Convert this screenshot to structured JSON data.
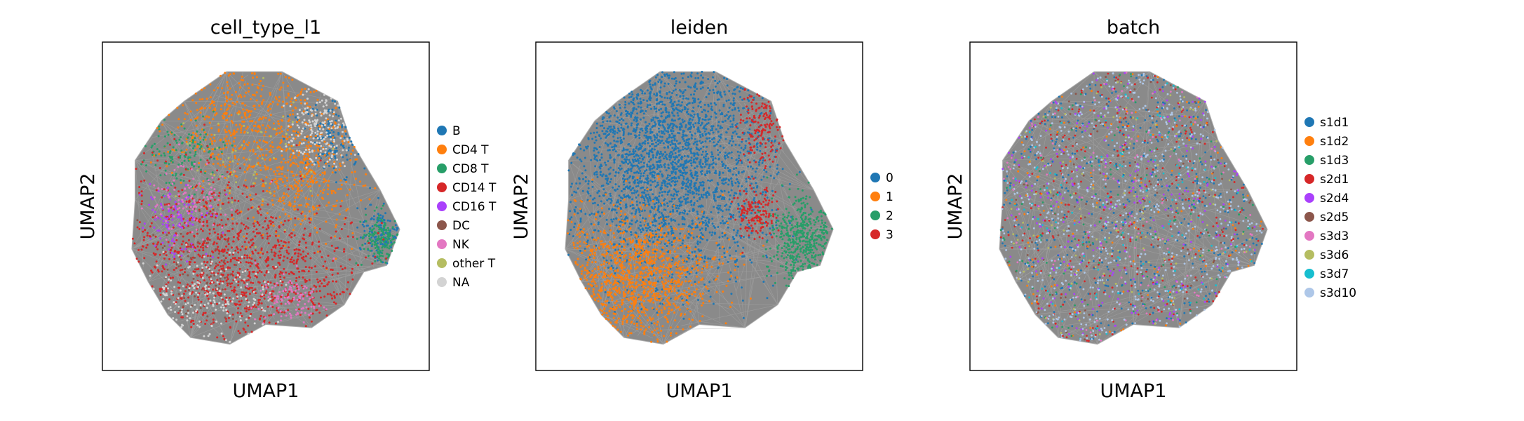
{
  "chart_data": [
    {
      "type": "scatter",
      "title": "cell_type_l1",
      "xlabel": "UMAP1",
      "ylabel": "UMAP2",
      "legend_position": "right",
      "ticks": "none",
      "background_graph_color": "#808080",
      "categories": [
        {
          "name": "B",
          "color": "#1f77b4"
        },
        {
          "name": "CD4 T",
          "color": "#ff7f0e"
        },
        {
          "name": "CD8 T",
          "color": "#279e68"
        },
        {
          "name": "CD14 T",
          "color": "#d62728"
        },
        {
          "name": "CD16 T",
          "color": "#aa40fc"
        },
        {
          "name": "DC",
          "color": "#8c564b"
        },
        {
          "name": "NK",
          "color": "#e377c2"
        },
        {
          "name": "other T",
          "color": "#b5bd61"
        },
        {
          "name": "NA",
          "color": "#d3d3d3"
        }
      ]
    },
    {
      "type": "scatter",
      "title": "leiden",
      "xlabel": "UMAP1",
      "ylabel": "UMAP2",
      "legend_position": "right",
      "ticks": "none",
      "background_graph_color": "#808080",
      "categories": [
        {
          "name": "0",
          "color": "#1f77b4"
        },
        {
          "name": "1",
          "color": "#ff7f0e"
        },
        {
          "name": "2",
          "color": "#279e68"
        },
        {
          "name": "3",
          "color": "#d62728"
        }
      ]
    },
    {
      "type": "scatter",
      "title": "batch",
      "xlabel": "UMAP1",
      "ylabel": "UMAP2",
      "legend_position": "right",
      "ticks": "none",
      "background_graph_color": "#808080",
      "categories": [
        {
          "name": "s1d1",
          "color": "#1f77b4"
        },
        {
          "name": "s1d2",
          "color": "#ff7f0e"
        },
        {
          "name": "s1d3",
          "color": "#279e68"
        },
        {
          "name": "s2d1",
          "color": "#d62728"
        },
        {
          "name": "s2d4",
          "color": "#aa40fc"
        },
        {
          "name": "s2d5",
          "color": "#8c564b"
        },
        {
          "name": "s3d3",
          "color": "#e377c2"
        },
        {
          "name": "s3d6",
          "color": "#b5bd61"
        },
        {
          "name": "s3d7",
          "color": "#17becf"
        },
        {
          "name": "s3d10",
          "color": "#aec7e8"
        }
      ]
    }
  ]
}
